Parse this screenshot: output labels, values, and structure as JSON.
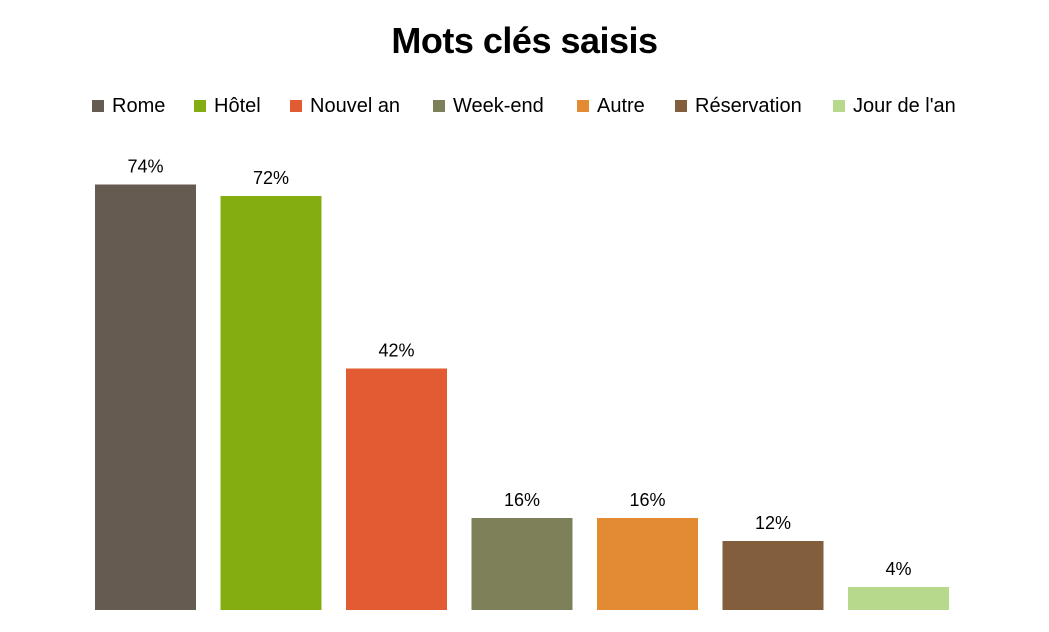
{
  "chart_data": {
    "type": "bar",
    "title": "Mots clés saisis",
    "xlabel": "",
    "ylabel": "",
    "legend_position": "top",
    "grid": false,
    "ylim": [
      0,
      80
    ],
    "categories": [
      "Rome",
      "Hôtel",
      "Nouvel an",
      "Week-end",
      "Autre",
      "Réservation",
      "Jour de l'an"
    ],
    "values": [
      74,
      72,
      42,
      16,
      16,
      12,
      4
    ],
    "value_labels": [
      "74%",
      "72%",
      "42%",
      "16%",
      "16%",
      "12%",
      "4%"
    ],
    "colors": [
      "#655b50",
      "#84ad12",
      "#e25b32",
      "#7e805a",
      "#e38b32",
      "#825e3d",
      "#b7d98b"
    ]
  }
}
